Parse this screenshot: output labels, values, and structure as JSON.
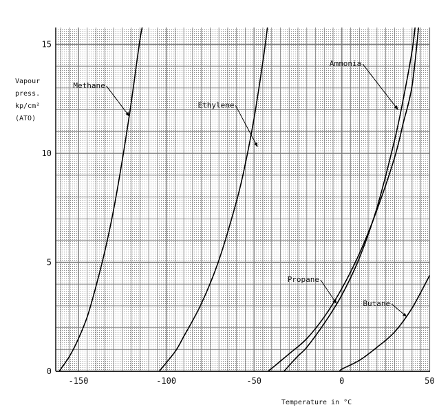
{
  "chart_data": {
    "type": "line",
    "title": "",
    "xlabel": "Temperature in °C",
    "ylabel_lines": [
      "Vapour",
      "press.",
      "kp/cm²",
      "(ATO)"
    ],
    "xlim": [
      -163,
      50
    ],
    "ylim": [
      0,
      16
    ],
    "x_ticks": [
      -150,
      -100,
      -50,
      0,
      50
    ],
    "y_ticks": [
      0,
      5,
      10,
      15
    ],
    "grid": true,
    "line_color": "#000000",
    "grid_color": "#7a7a7a",
    "series": [
      {
        "name": "Methane",
        "x": [
          -161,
          -155,
          -150,
          -145,
          -140,
          -135,
          -130,
          -125,
          -120,
          -115,
          -113
        ],
        "y": [
          0.0,
          0.7,
          1.5,
          2.5,
          3.9,
          5.5,
          7.4,
          9.7,
          12.3,
          15.2,
          16.0
        ]
      },
      {
        "name": "Ethylene",
        "x": [
          -104,
          -95,
          -90,
          -80,
          -70,
          -60,
          -55,
          -50,
          -45,
          -42
        ],
        "y": [
          0.0,
          0.9,
          1.6,
          3.1,
          5.1,
          7.8,
          9.5,
          11.6,
          14.2,
          16.0
        ]
      },
      {
        "name": "Propane",
        "x": [
          -42,
          -30,
          -20,
          -10,
          0,
          10,
          20,
          30,
          35,
          40,
          44
        ],
        "y": [
          0.0,
          0.8,
          1.5,
          2.5,
          3.8,
          5.4,
          7.4,
          9.8,
          11.4,
          13.1,
          16.0
        ]
      },
      {
        "name": "Ammonia",
        "x": [
          -33,
          -25,
          -20,
          -10,
          0,
          10,
          20,
          30,
          35,
          40,
          42
        ],
        "y": [
          0.0,
          0.7,
          1.1,
          2.2,
          3.5,
          5.2,
          7.5,
          10.6,
          12.5,
          14.7,
          16.0
        ]
      },
      {
        "name": "Butane",
        "x": [
          -1,
          0,
          10,
          20,
          30,
          40,
          50
        ],
        "y": [
          0.0,
          0.1,
          0.5,
          1.1,
          1.8,
          2.9,
          4.4
        ]
      }
    ],
    "annotations": [
      {
        "series": "Methane",
        "label": "Methane",
        "label_x": -153,
        "label_y": 13.0,
        "target_x": -121,
        "target_y": 11.7
      },
      {
        "series": "Ethylene",
        "label": "Ethylene",
        "label_x": -82,
        "label_y": 12.1,
        "target_x": -48,
        "target_y": 10.3
      },
      {
        "series": "Ammonia",
        "label": "Ammonia",
        "label_x": -7,
        "label_y": 14.0,
        "target_x": 32,
        "target_y": 12.0
      },
      {
        "series": "Propane",
        "label": "Propane",
        "label_x": -31,
        "label_y": 4.1,
        "target_x": -3,
        "target_y": 3.1
      },
      {
        "series": "Butane",
        "label": "Butane",
        "label_x": 12,
        "label_y": 3.0,
        "target_x": 37,
        "target_y": 2.5
      }
    ]
  }
}
